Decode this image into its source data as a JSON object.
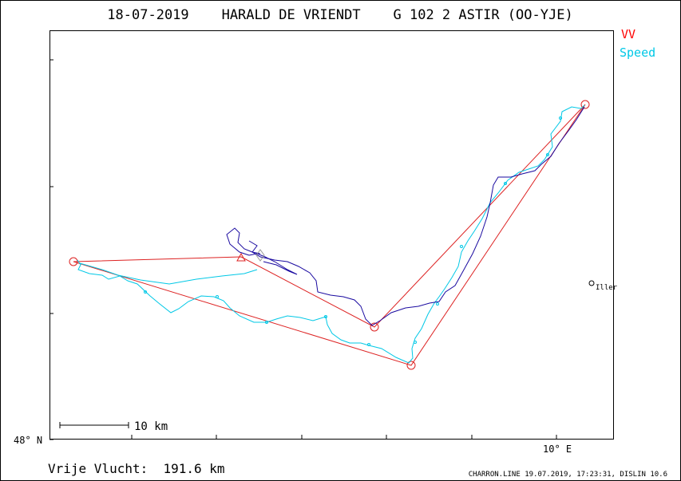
{
  "header": {
    "title": "18-07-2019    HARALD DE VRIENDT    G 102 2 ASTIR (OO-YJE)"
  },
  "legend": [
    {
      "label": "VV",
      "color": "#ff0000"
    },
    {
      "label": "Speed",
      "color": "#00c8e6"
    }
  ],
  "footer": {
    "distance_label": "Vrije Vlucht:  191.6 km",
    "credits": "CHARRON.LINE 19.07.2019, 17:23:31, DISLIN 10.6"
  },
  "scale_bar": {
    "label": "10 km"
  },
  "axes": {
    "y_tick_label": "48° N",
    "x_tick_label": "10° E"
  },
  "town": {
    "label": "Iller"
  },
  "colors": {
    "task": "#dd2222",
    "track_climb": "#1a0aa0",
    "track_speed": "#00c8e6",
    "frame": "#000000"
  },
  "chart_data": {
    "type": "scatter",
    "title": "18-07-2019    HARALD DE VRIENDT    G 102 2 ASTIR (OO-YJE)",
    "xlabel": "",
    "ylabel": "",
    "x_ticks_labeled": [
      {
        "value": "10° E"
      }
    ],
    "y_ticks_labeled": [
      {
        "value": "48° N"
      }
    ],
    "series": [
      {
        "name": "VV",
        "color": "#ff0000"
      },
      {
        "name": "Speed",
        "color": "#00c8e6"
      }
    ],
    "scale": "10 km",
    "free_flight_distance_km": 191.6
  }
}
